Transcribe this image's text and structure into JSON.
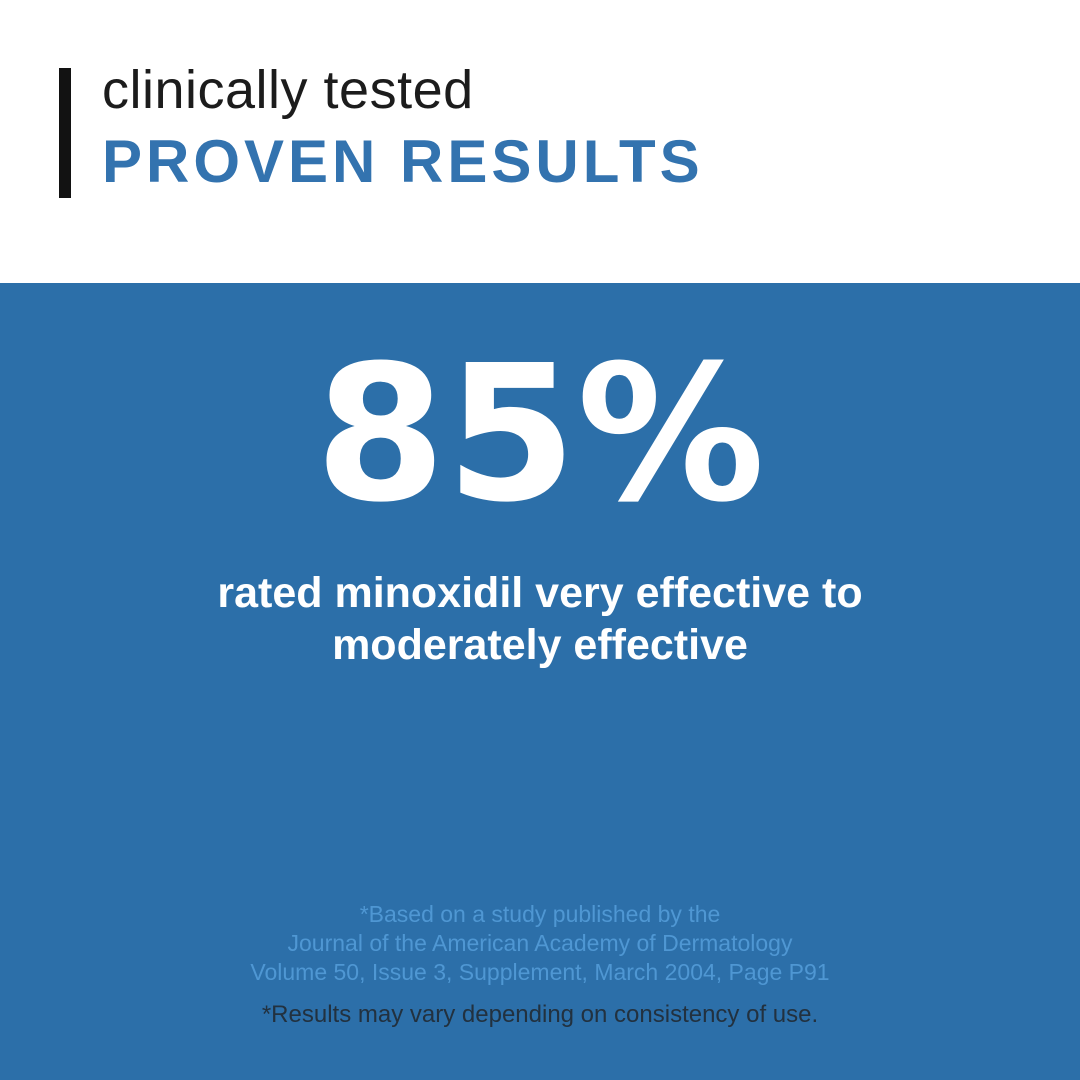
{
  "header": {
    "eyebrow": "clinically tested",
    "title": "PROVEN RESULTS"
  },
  "hero": {
    "stat_value": "85%",
    "caption_line1": "rated minoxidil very effective to",
    "caption_line2": "moderately effective",
    "citation_line1": "*Based on a study published by the",
    "citation_line2": "Journal of the American Academy of Dermatology",
    "citation_line3": "Volume 50, Issue 3, Supplement, March 2004, Page P91",
    "disclaimer": "*Results may vary depending on consistency of use."
  },
  "colors": {
    "background_blue": "#2c6fa9",
    "title_blue": "#3373af",
    "citation_blue": "#4f97d3",
    "disclaimer_dark": "#22313f",
    "accent_black": "#121212"
  }
}
